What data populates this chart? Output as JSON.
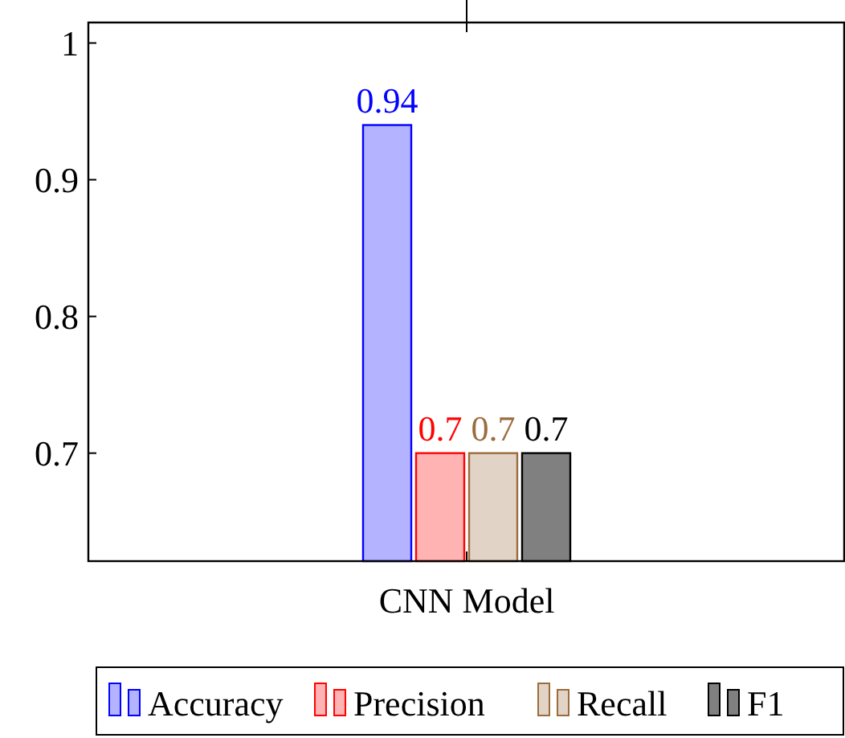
{
  "chart_data": {
    "type": "bar",
    "categories": [
      "CNN Model"
    ],
    "series": [
      {
        "name": "Accuracy",
        "color": "#b3b3ff",
        "values": [
          0.94
        ]
      },
      {
        "name": "Precision",
        "color": "#ffb3b3",
        "values": [
          0.7
        ]
      },
      {
        "name": "Recall",
        "color": "#e1d3c5",
        "values": [
          0.7
        ]
      },
      {
        "name": "F1",
        "color": "#808080",
        "values": [
          0.7
        ]
      }
    ],
    "ylim": [
      0.621,
      1.015
    ],
    "yticks": [
      0.7,
      0.8,
      0.9,
      1
    ],
    "data_labels": true,
    "legend": "bottom",
    "grid": false
  }
}
